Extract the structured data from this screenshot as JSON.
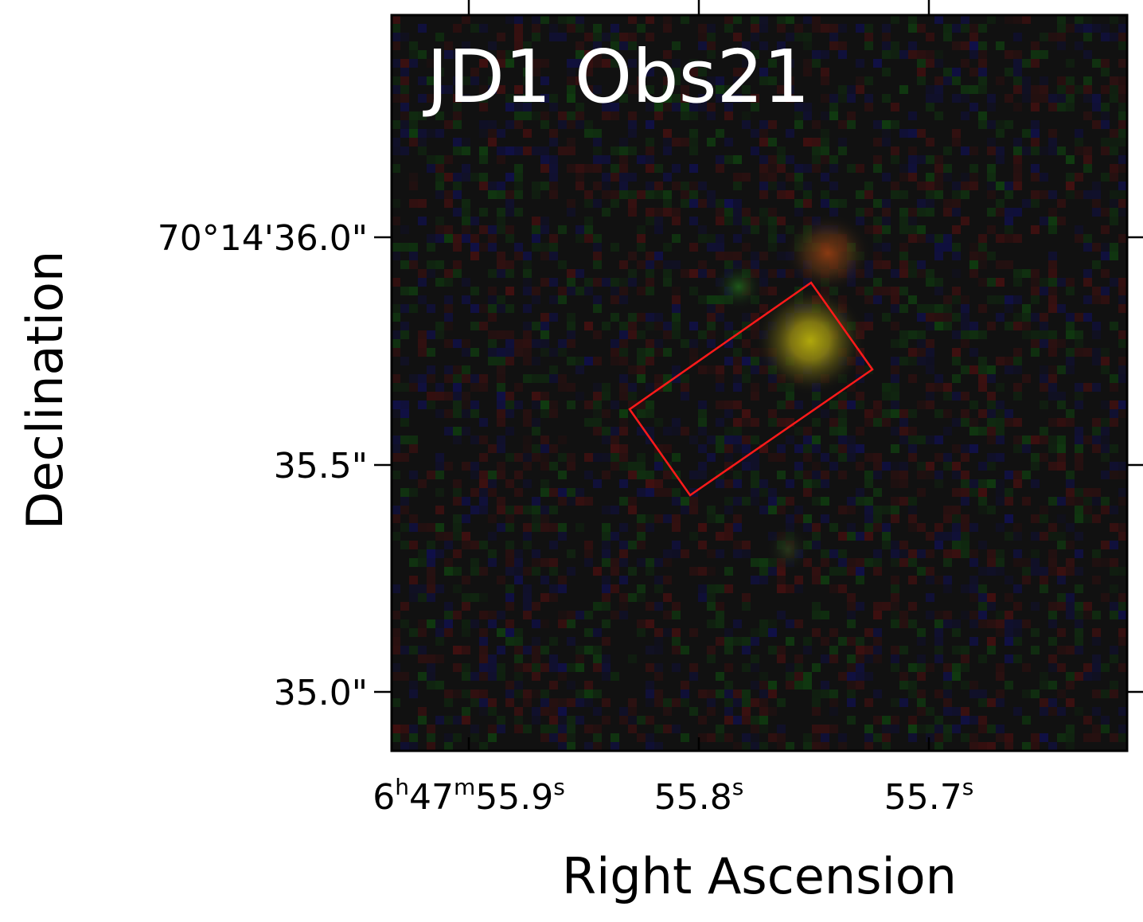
{
  "panel": {
    "label": "JD1 Obs21"
  },
  "axes": {
    "xlabel": "Right Ascension",
    "ylabel": "Declination",
    "x_ticks": [
      {
        "base": "6",
        "sup1": "h",
        "mid": "47",
        "sup2": "m",
        "val": "55.9",
        "sup3": "s"
      },
      {
        "val": "55.8",
        "sup3": "s"
      },
      {
        "val": "55.7",
        "sup3": "s"
      }
    ],
    "y_ticks": [
      "70°14'36.0\"",
      "35.5\"",
      "35.0\""
    ]
  },
  "colors": {
    "background": "#111111",
    "slit": "#ff1a1a",
    "source": "#a8a010",
    "companion": "#8a3a10"
  }
}
